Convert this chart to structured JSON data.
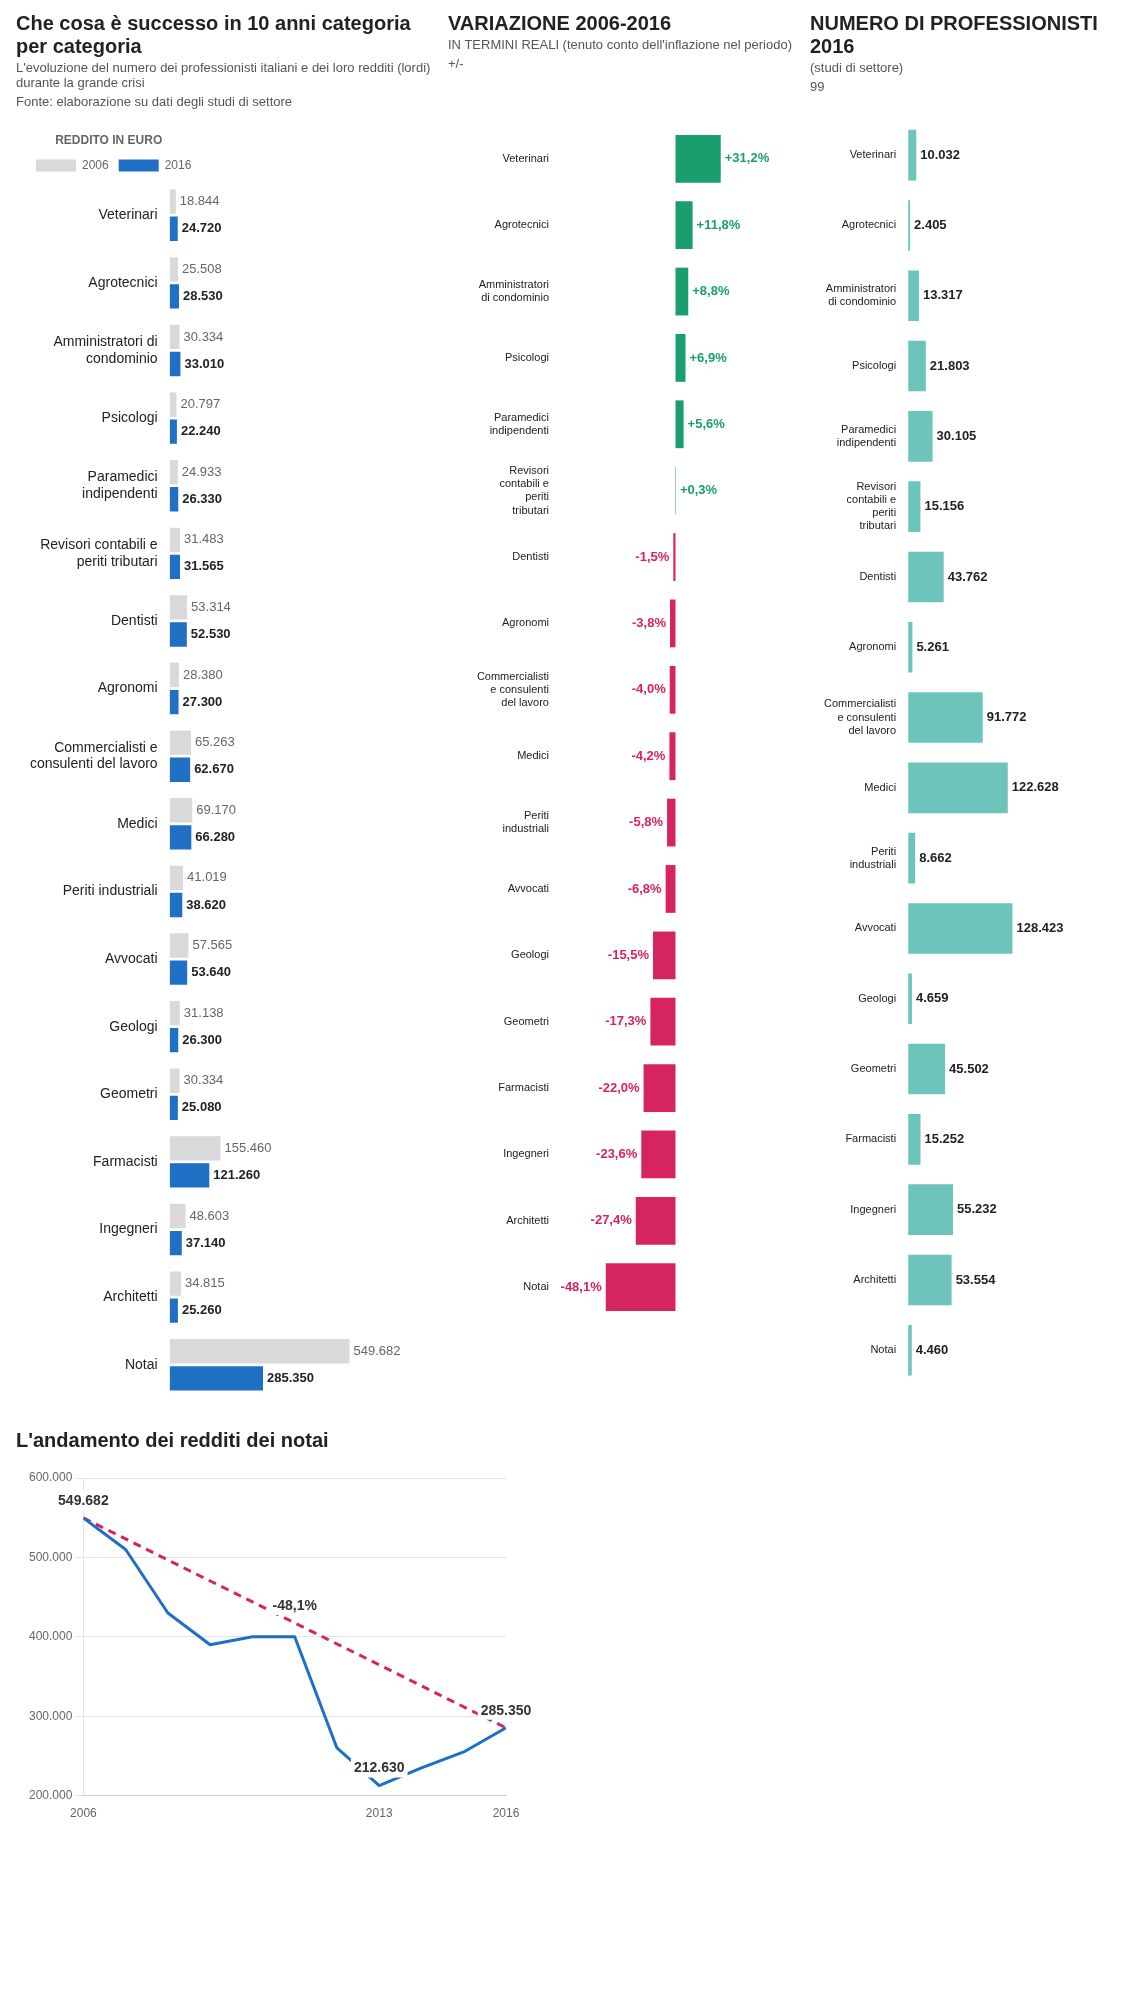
{
  "chart_data": [
    {
      "type": "bar",
      "orientation": "horizontal",
      "title": "Che cosa è successo in 10 anni categoria per categoria",
      "subtitle": "L'evoluzione del numero dei professionisti italiani e dei loro redditi (lordi) durante la grande crisi",
      "legend_title": "REDDITO IN EURO",
      "legend": "top",
      "tick_labels": "y",
      "categories": [
        "Veterinari",
        "Agrotecnici",
        "Amministratori di condominio",
        "Psicologi",
        "Paramedici indipendenti",
        "Revisori contabili e periti tributari",
        "Dentisti",
        "Agronomi",
        "Commercialisti e consulenti del lavoro",
        "Medici",
        "Periti industriali",
        "Avvocati",
        "Geologi",
        "Geometri",
        "Farmacisti",
        "Ingegneri",
        "Architetti",
        "Notai"
      ],
      "series": [
        {
          "name": "2006",
          "color": "#d9d9d9",
          "values": [
            18844,
            25508,
            30334,
            20797,
            24933,
            31483,
            53314,
            28380,
            65263,
            69170,
            41019,
            57565,
            31138,
            30334,
            155460,
            48603,
            34815,
            549682
          ],
          "value_labels": [
            "18.844",
            "25.508",
            "30.334",
            "20.797",
            "24.933",
            "31.483",
            "53.314",
            "28.380",
            "65.263",
            "69.170",
            "41.019",
            "57.565",
            "31.138",
            "30.334",
            "155.460",
            "48.603",
            "34.815",
            "549.682"
          ]
        },
        {
          "name": "2016",
          "color": "#1f6fc5",
          "values": [
            24720,
            28530,
            33010,
            22240,
            26330,
            31565,
            52530,
            27300,
            62670,
            66280,
            38620,
            53640,
            26300,
            25080,
            121260,
            37140,
            25260,
            285350
          ],
          "value_labels": [
            "24.720",
            "28.530",
            "33.010",
            "22.240",
            "26.330",
            "31.565",
            "52.530",
            "27.300",
            "62.670",
            "66.280",
            "38.620",
            "53.640",
            "26.300",
            "25.080",
            "121.260",
            "37.140",
            "25.260",
            "285.350"
          ]
        }
      ],
      "annotations": [
        "Fonte: elaborazione su dati degli studi di settore"
      ]
    },
    {
      "type": "bar",
      "orientation": "horizontal",
      "title": "VARIAZIONE 2006-2016",
      "subtitle": "IN TERMINI REALI (tenuto conto dell'inflazione nel periodo)",
      "tick_labels": "y",
      "categories": [
        "Veterinari",
        "Agrotecnici",
        "Amministratori di condominio",
        "Psicologi",
        "Paramedici indipendenti",
        "Revisori contabili e periti tributari",
        "Dentisti",
        "Agronomi",
        "Commercialisti e consulenti del lavoro",
        "Medici",
        "Periti industriali",
        "Avvocati",
        "Geologi",
        "Geometri",
        "Farmacisti",
        "Ingegneri",
        "Architetti",
        "Notai"
      ],
      "series": [
        {
          "colors": [
            "#1a9e6e",
            "#1a9e6e",
            "#1a9e6e",
            "#1a9e6e",
            "#1a9e6e",
            "#1a9e6e",
            "#d6245f",
            "#d6245f",
            "#d6245f",
            "#d6245f",
            "#d6245f",
            "#d6245f",
            "#d6245f",
            "#d6245f",
            "#d6245f",
            "#d6245f",
            "#d6245f",
            "#d6245f"
          ],
          "values": [
            31.2,
            11.8,
            8.8,
            6.9,
            5.6,
            0.3,
            -1.5,
            -3.8,
            -4.0,
            -4.2,
            -5.8,
            -6.8,
            -15.5,
            -17.3,
            -22.0,
            -23.6,
            -27.4,
            -48.1
          ],
          "value_labels": [
            "+31,2%",
            "+11,8%",
            "+8,8%",
            "+6,9%",
            "+5,6%",
            "+0,3%",
            "-1,5%",
            "-3,8%",
            "-4,0%",
            "-4,2%",
            "-5,8%",
            "-6,8%",
            "-15,5%",
            "-17,3%",
            "-22,0%",
            "-23,6%",
            "-27,4%",
            "-48,1%"
          ]
        }
      ],
      "annotations": [
        "+/-"
      ]
    },
    {
      "type": "bar",
      "orientation": "horizontal",
      "title": "NUMERO DI PROFESSIONISTI 2016",
      "subtitle": "(studi di settore)",
      "tick_labels": "y",
      "categories": [
        "Veterinari",
        "Agrotecnici",
        "Amministratori di condominio",
        "Psicologi",
        "Paramedici indipendenti",
        "Revisori contabili e periti tributari",
        "Dentisti",
        "Agronomi",
        "Commercialisti e consulenti del lavoro",
        "Medici",
        "Periti industriali",
        "Avvocati",
        "Geologi",
        "Geometri",
        "Farmacisti",
        "Ingegneri",
        "Architetti",
        "Notai"
      ],
      "series": [
        {
          "color": "#6cc4bb",
          "values": [
            10032,
            2405,
            13317,
            21803,
            30105,
            15156,
            43762,
            5261,
            91772,
            122628,
            8662,
            128423,
            4659,
            45502,
            15252,
            55232,
            53554,
            4460
          ],
          "value_labels": [
            "10.032",
            "2.405",
            "13.317",
            "21.803",
            "30.105",
            "15.156",
            "43.762",
            "5.261",
            "91.772",
            "122.628",
            "8.662",
            "128.423",
            "4.659",
            "45.502",
            "15.252",
            "55.232",
            "53.554",
            "4.460"
          ]
        }
      ],
      "annotations": [
        "99"
      ]
    },
    {
      "type": "line",
      "title": "L'andamento dei redditi dei notai",
      "grid": "y",
      "xlim": [
        2006,
        2016
      ],
      "xticks": [
        2006,
        2013,
        2016
      ],
      "ylim": [
        200000,
        600000
      ],
      "yticks": [
        {
          "value": 200000,
          "label": "200.000"
        },
        {
          "value": 300000,
          "label": "300.000"
        },
        {
          "value": 400000,
          "label": "400.000"
        },
        {
          "value": 500000,
          "label": "500.000"
        },
        {
          "value": 600000,
          "label": "600.000"
        }
      ],
      "series": [
        {
          "color": "#1f6fc5",
          "x": [
            2006,
            2007,
            2008,
            2009,
            2010,
            2011,
            2012,
            2013,
            2014,
            2015,
            2016
          ],
          "values": [
            549682,
            510000,
            430000,
            390000,
            400000,
            400000,
            260000,
            212630,
            235000,
            255000,
            285350
          ]
        },
        {
          "color": "#d6245f",
          "line_style": "dashed",
          "x": [
            2006,
            2016
          ],
          "values": [
            549682,
            285350
          ]
        }
      ],
      "annotations": [
        {
          "text": "549.682",
          "x": 2006,
          "y": 549682
        },
        {
          "text": "212.630",
          "x": 2013,
          "y": 212630
        },
        {
          "text": "285.350",
          "x": 2016,
          "y": 285350
        },
        {
          "text": "-48,1%",
          "x": 2011,
          "y": 417516
        }
      ]
    }
  ]
}
